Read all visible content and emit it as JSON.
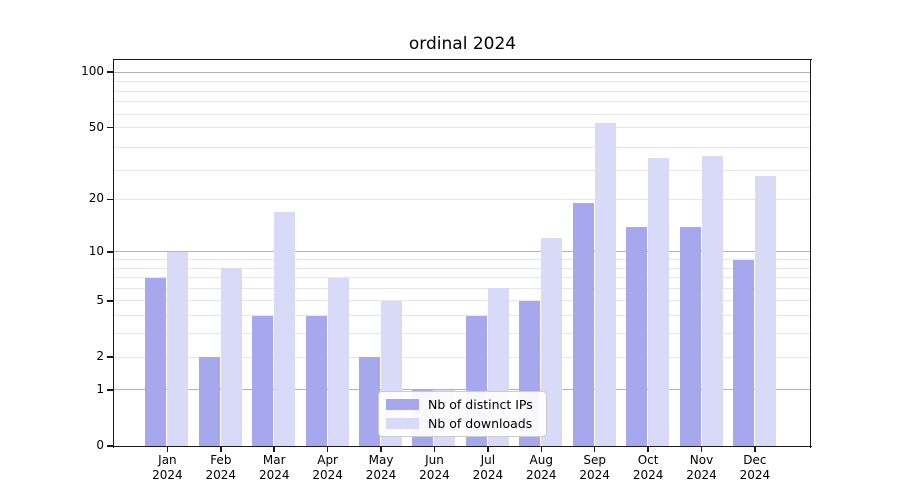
{
  "chart_data": {
    "type": "bar",
    "title": "ordinal 2024",
    "categories": [
      "Jan",
      "Feb",
      "Mar",
      "Apr",
      "May",
      "Jun",
      "Jul",
      "Aug",
      "Sep",
      "Oct",
      "Nov",
      "Dec"
    ],
    "category_year": "2024",
    "series": [
      {
        "name": "Nb of distinct IPs",
        "color": "#a7a7ee",
        "values": [
          7,
          2,
          4,
          4,
          2,
          1,
          4,
          5,
          19,
          14,
          14,
          9
        ]
      },
      {
        "name": "Nb of downloads",
        "color": "#d9d9f8",
        "values": [
          10,
          8,
          17,
          7,
          5,
          1,
          6,
          12,
          53,
          34,
          35,
          27
        ]
      }
    ],
    "y_scale": "log10(1+value)",
    "y_ticks": [
      0,
      1,
      2,
      5,
      10,
      20,
      50,
      100
    ],
    "y_tick_labels": [
      "0",
      "1",
      "2",
      "5",
      "10",
      "20",
      "50",
      "100"
    ],
    "ylim": [
      0,
      116
    ],
    "xlabel": "",
    "ylabel": "",
    "grid": {
      "on": true,
      "major_values": [
        1,
        10,
        100
      ],
      "light_values": [
        2,
        5,
        20,
        50
      ],
      "minor_mantissas_1p": [
        4,
        5,
        7,
        8,
        9,
        10,
        30,
        40,
        60,
        70,
        80,
        90
      ]
    },
    "legend": {
      "position": "lower-center",
      "entries": [
        "Nb of distinct IPs",
        "Nb of downloads"
      ]
    }
  },
  "colors": {
    "background": "#ffffff",
    "bar_distinct_ips": "#a7a7ee",
    "bar_downloads": "#d9d9f8",
    "major_grid": "#b3b3b3",
    "minor_grid": "#e7e7e7",
    "spine": "#1a1a1a",
    "text": "#000000",
    "legend_border": "#cccccc"
  }
}
